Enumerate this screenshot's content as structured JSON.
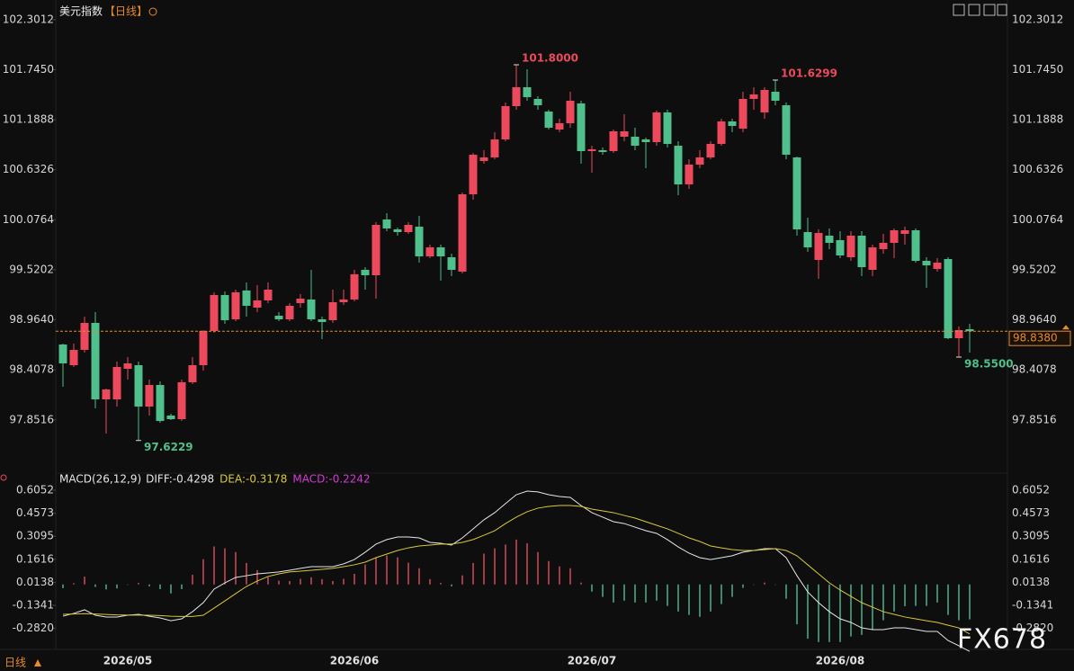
{
  "chart_data": [
    {
      "type": "candlestick",
      "title": "美元指数",
      "subtitle": "【日线】",
      "categories": [
        null,
        null,
        null,
        null,
        null,
        null,
        "2026/05",
        null,
        null,
        null,
        null,
        null,
        null,
        null,
        null,
        null,
        null,
        null,
        null,
        null,
        null,
        null,
        null,
        null,
        null,
        null,
        null,
        "2026/06",
        null,
        null,
        null,
        null,
        null,
        null,
        null,
        null,
        null,
        null,
        null,
        null,
        null,
        null,
        null,
        null,
        null,
        null,
        null,
        null,
        null,
        "2026/07",
        null,
        null,
        null,
        null,
        null,
        null,
        null,
        null,
        null,
        null,
        null,
        null,
        null,
        null,
        null,
        null,
        null,
        null,
        null,
        null,
        null,
        null,
        "2026/08",
        null,
        null,
        null,
        null,
        null,
        null,
        null,
        null,
        null,
        null,
        null,
        null
      ],
      "open": [
        98.69,
        98.46,
        98.63,
        98.93,
        98.08,
        98.08,
        98.42,
        98.46,
        98.0,
        98.24,
        97.9,
        97.86,
        98.27,
        98.46,
        98.84,
        99.24,
        98.97,
        99.29,
        99.1,
        99.18,
        99.01,
        98.97,
        99.15,
        99.19,
        98.97,
        98.96,
        99.16,
        99.19,
        99.52,
        99.46,
        100.08,
        99.97,
        99.94,
        100.0,
        99.67,
        99.77,
        99.66,
        99.5,
        100.36,
        100.73,
        100.77,
        100.97,
        101.34,
        101.55,
        101.42,
        101.28,
        101.08,
        101.15,
        101.37,
        100.84,
        100.85,
        100.84,
        101.0,
        101.0,
        100.97,
        100.94,
        101.27,
        100.9,
        100.47,
        100.69,
        100.77,
        100.92,
        101.17,
        101.09,
        101.42,
        101.27,
        101.5,
        101.35,
        100.77,
        99.94,
        99.63,
        99.9,
        99.85,
        99.66,
        99.9,
        99.52,
        99.75,
        99.82,
        99.92,
        99.96,
        99.62,
        99.53,
        99.64,
        98.76,
        98.86
      ],
      "high": [
        98.7,
        98.7,
        99.0,
        99.05,
        98.2,
        98.5,
        98.55,
        98.5,
        98.3,
        98.28,
        97.92,
        98.3,
        98.55,
        98.85,
        99.27,
        99.28,
        99.3,
        99.38,
        99.35,
        99.38,
        99.05,
        99.15,
        99.25,
        99.52,
        99.0,
        99.3,
        99.3,
        99.52,
        99.55,
        100.05,
        100.15,
        99.99,
        100.05,
        100.12,
        99.8,
        99.8,
        99.7,
        100.38,
        100.82,
        100.85,
        101.05,
        101.38,
        101.8,
        101.75,
        101.45,
        101.3,
        101.2,
        101.5,
        101.4,
        100.9,
        100.88,
        101.08,
        101.25,
        101.1,
        100.99,
        101.29,
        101.3,
        100.95,
        100.75,
        100.85,
        100.95,
        101.2,
        101.2,
        101.5,
        101.55,
        101.55,
        101.6299,
        101.38,
        100.78,
        100.1,
        99.97,
        99.98,
        99.95,
        99.95,
        99.95,
        99.8,
        99.92,
        99.98,
        100.0,
        99.98,
        99.66,
        99.65,
        99.66,
        98.89,
        98.92
      ],
      "low": [
        98.22,
        98.44,
        98.6,
        97.98,
        97.7,
        98.0,
        98.3,
        97.6229,
        97.9,
        97.82,
        97.85,
        97.84,
        98.25,
        98.4,
        98.82,
        98.92,
        98.95,
        99.0,
        99.05,
        99.15,
        98.95,
        98.95,
        99.1,
        98.95,
        98.75,
        98.93,
        99.13,
        99.17,
        99.3,
        99.2,
        99.95,
        99.9,
        99.92,
        99.6,
        99.65,
        99.4,
        99.45,
        99.48,
        100.3,
        100.7,
        100.75,
        100.95,
        101.3,
        101.4,
        101.3,
        101.08,
        101.05,
        101.1,
        100.7,
        100.6,
        100.8,
        100.82,
        100.95,
        100.85,
        100.65,
        100.9,
        100.88,
        100.35,
        100.42,
        100.65,
        100.75,
        100.9,
        101.05,
        101.05,
        101.3,
        101.2,
        101.35,
        100.75,
        99.9,
        99.72,
        99.42,
        99.75,
        99.65,
        99.62,
        99.45,
        99.45,
        99.7,
        99.65,
        99.8,
        99.6,
        99.32,
        99.5,
        98.75,
        98.55,
        98.6
      ],
      "close": [
        98.48,
        98.63,
        98.93,
        98.08,
        98.19,
        98.44,
        98.48,
        98.0,
        98.24,
        97.84,
        97.86,
        98.27,
        98.46,
        98.84,
        99.24,
        98.96,
        99.27,
        99.12,
        99.18,
        99.3,
        98.97,
        99.12,
        99.2,
        98.97,
        98.94,
        99.16,
        99.19,
        99.47,
        99.46,
        100.02,
        99.98,
        99.94,
        100.02,
        99.67,
        99.77,
        99.67,
        99.52,
        100.36,
        100.8,
        100.77,
        100.97,
        101.34,
        101.55,
        101.44,
        101.35,
        101.1,
        101.15,
        101.4,
        100.84,
        100.86,
        100.83,
        101.06,
        101.06,
        100.9,
        100.94,
        101.27,
        100.92,
        100.47,
        100.69,
        100.77,
        100.92,
        101.17,
        101.12,
        101.42,
        101.47,
        101.52,
        101.4,
        100.8,
        99.97,
        99.77,
        99.93,
        99.82,
        99.68,
        99.9,
        99.55,
        99.77,
        99.82,
        99.96,
        99.96,
        99.62,
        99.57,
        99.6,
        98.76,
        98.85,
        98.838
      ],
      "up_color": "#ec4a5c",
      "down_color": "#4fbf8c",
      "ylim": [
        97.32,
        102.42
      ],
      "yticks": [
        102.3012,
        {
          "value": 101.745,
          "label": "101.7450"
        },
        101.1888,
        100.6326,
        100.0764,
        99.5202,
        {
          "value": 98.964,
          "label": "98.9640"
        },
        98.4078,
        97.8516
      ],
      "high_labels": [
        {
          "value": 101.8,
          "label": "101.8000"
        },
        {
          "value": 101.6299,
          "label": "101.6299"
        }
      ],
      "low_labels": [
        {
          "value": 97.6229,
          "label": "97.6229"
        },
        {
          "value": 98.55,
          "label": "98.5500"
        }
      ],
      "last_price": {
        "value": 98.838,
        "label": "98.8380"
      },
      "last_price_color": "#e8892c"
    },
    {
      "type": "macd",
      "title": "MACD(26,12,9)",
      "series": [
        {
          "name": "DIFF:-0.4298",
          "color": "#e6e6e6",
          "style": "line",
          "values": [
            -0.204,
            -0.186,
            -0.163,
            -0.198,
            -0.209,
            -0.209,
            -0.198,
            -0.192,
            -0.204,
            -0.215,
            -0.233,
            -0.221,
            -0.175,
            -0.117,
            -0.03,
            0.01,
            0.045,
            0.056,
            0.068,
            0.074,
            0.08,
            0.091,
            0.103,
            0.114,
            0.114,
            0.114,
            0.132,
            0.16,
            0.207,
            0.259,
            0.288,
            0.305,
            0.305,
            0.299,
            0.27,
            0.264,
            0.253,
            0.299,
            0.357,
            0.415,
            0.461,
            0.519,
            0.576,
            0.599,
            0.594,
            0.576,
            0.565,
            0.559,
            0.507,
            0.461,
            0.432,
            0.403,
            0.391,
            0.368,
            0.345,
            0.328,
            0.288,
            0.241,
            0.201,
            0.172,
            0.16,
            0.172,
            0.184,
            0.207,
            0.218,
            0.23,
            0.23,
            0.172,
            0.056,
            -0.048,
            -0.117,
            -0.175,
            -0.221,
            -0.244,
            -0.279,
            -0.29,
            -0.29,
            -0.279,
            -0.279,
            -0.29,
            -0.302,
            -0.302,
            -0.36,
            -0.394,
            -0.4298
          ]
        },
        {
          "name": "DEA:-0.3178",
          "color": "#d9c83a",
          "style": "line",
          "values": [
            -0.192,
            -0.19,
            -0.188,
            -0.19,
            -0.193,
            -0.196,
            -0.197,
            -0.197,
            -0.198,
            -0.2,
            -0.204,
            -0.206,
            -0.206,
            -0.198,
            -0.152,
            -0.106,
            -0.059,
            -0.013,
            0.022,
            0.051,
            0.068,
            0.08,
            0.085,
            0.091,
            0.097,
            0.103,
            0.114,
            0.126,
            0.143,
            0.172,
            0.195,
            0.218,
            0.235,
            0.247,
            0.253,
            0.259,
            0.259,
            0.27,
            0.288,
            0.316,
            0.345,
            0.391,
            0.432,
            0.467,
            0.49,
            0.501,
            0.507,
            0.507,
            0.501,
            0.484,
            0.472,
            0.461,
            0.443,
            0.426,
            0.403,
            0.38,
            0.357,
            0.328,
            0.299,
            0.276,
            0.247,
            0.235,
            0.224,
            0.218,
            0.218,
            0.224,
            0.23,
            0.218,
            0.184,
            0.126,
            0.068,
            0.01,
            -0.036,
            -0.077,
            -0.117,
            -0.146,
            -0.175,
            -0.192,
            -0.209,
            -0.221,
            -0.233,
            -0.244,
            -0.262,
            -0.279,
            -0.3178
          ]
        },
        {
          "name": "MACD:-0.2242",
          "color": "#d23ad2",
          "style": "bar",
          "values": [
            -0.024,
            0.008,
            0.05,
            -0.016,
            -0.032,
            -0.026,
            -0.002,
            0.01,
            -0.012,
            -0.03,
            -0.058,
            -0.03,
            0.062,
            0.162,
            0.244,
            0.232,
            0.208,
            0.138,
            0.092,
            0.046,
            0.024,
            0.022,
            0.036,
            0.046,
            0.034,
            0.022,
            0.036,
            0.068,
            0.128,
            0.174,
            0.186,
            0.174,
            0.14,
            0.104,
            0.034,
            0.01,
            -0.012,
            0.058,
            0.138,
            0.198,
            0.232,
            0.256,
            0.288,
            0.264,
            0.208,
            0.15,
            0.116,
            0.104,
            0.012,
            -0.046,
            -0.08,
            -0.116,
            -0.104,
            -0.116,
            -0.116,
            -0.104,
            -0.138,
            -0.174,
            -0.196,
            -0.208,
            -0.174,
            -0.126,
            -0.08,
            -0.022,
            0,
            0.012,
            0,
            -0.092,
            -0.256,
            -0.348,
            -0.37,
            -0.37,
            -0.37,
            -0.334,
            -0.324,
            -0.288,
            -0.23,
            -0.174,
            -0.14,
            -0.138,
            -0.138,
            -0.116,
            -0.196,
            -0.23,
            -0.2242
          ]
        }
      ],
      "up_color": "#d04a5c",
      "down_color": "#4fb08c",
      "ylim": [
        -0.4,
        0.66
      ],
      "yticks": [
        0.6052,
        0.4573,
        0.3095,
        0.1616,
        0.0138,
        -0.1341,
        {
          "value": -0.282,
          "label": "-0.2820"
        }
      ]
    }
  ],
  "footer": {
    "period": "日线"
  },
  "watermark": "FX678"
}
